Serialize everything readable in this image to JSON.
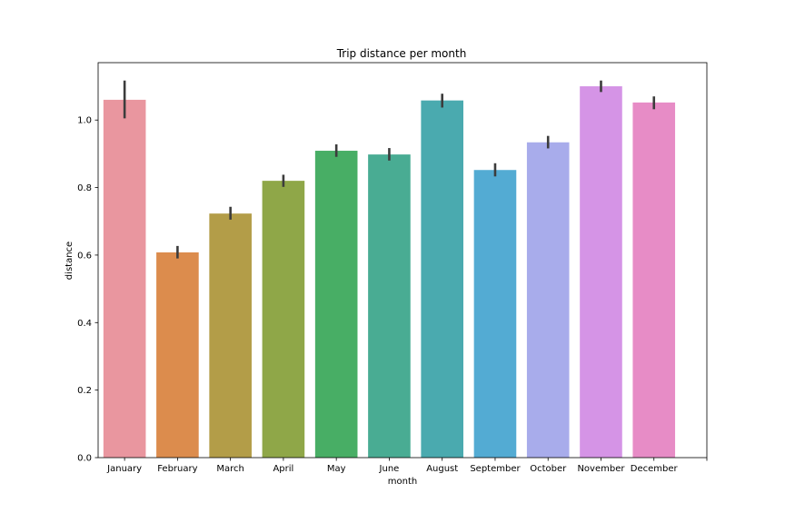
{
  "chart_data": {
    "type": "bar",
    "title": "Trip distance per month",
    "xlabel": "month",
    "ylabel": "distance",
    "categories": [
      "January",
      "February",
      "March",
      "April",
      "May",
      "June",
      "August",
      "September",
      "October",
      "November",
      "December"
    ],
    "values": [
      1.06,
      0.608,
      0.723,
      0.82,
      0.909,
      0.898,
      1.058,
      0.852,
      0.934,
      1.1,
      1.052
    ],
    "error_low": [
      1.005,
      0.59,
      0.705,
      0.802,
      0.891,
      0.88,
      1.037,
      0.833,
      0.916,
      1.083,
      1.032
    ],
    "error_high": [
      1.117,
      0.627,
      0.743,
      0.838,
      0.928,
      0.917,
      1.078,
      0.872,
      0.953,
      1.117,
      1.07
    ],
    "ylim": [
      0,
      1.17
    ],
    "yticks": [
      0.0,
      0.2,
      0.4,
      0.6,
      0.8,
      1.0
    ],
    "ytick_labels": [
      "0.0",
      "0.2",
      "0.4",
      "0.6",
      "0.8",
      "1.0"
    ],
    "colors": [
      "#e9969f",
      "#dc8c4d",
      "#b39d48",
      "#8fa748",
      "#48ae65",
      "#49ac93",
      "#4aaaaf",
      "#53abd3",
      "#a8aceb",
      "#d594e6",
      "#e78cc6"
    ],
    "error_color": "#3c3c3c",
    "grid": false,
    "legend": "none"
  }
}
